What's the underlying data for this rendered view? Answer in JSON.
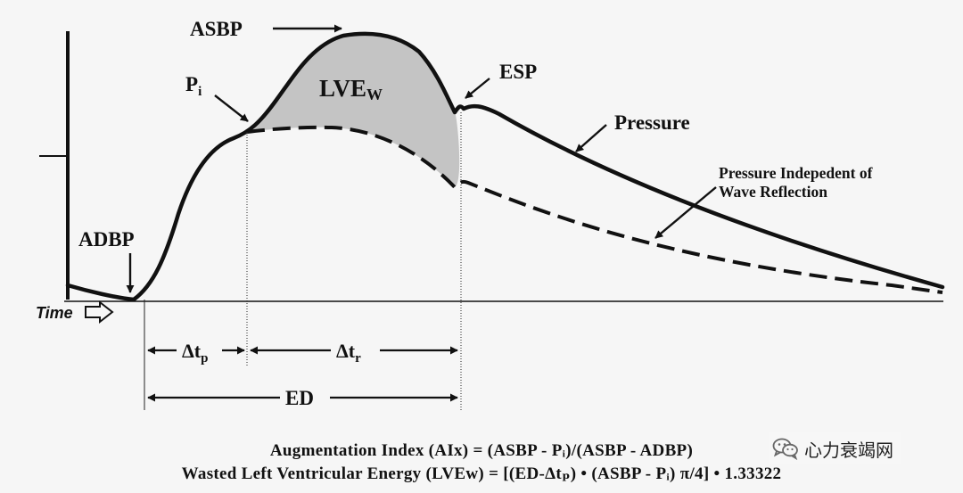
{
  "labels": {
    "asbp": "ASBP",
    "pi_main": "P",
    "pi_sub": "i",
    "lvew_main": "LVE",
    "lvew_sub": "W",
    "esp": "ESP",
    "pressure": "Pressure",
    "pressure_indep_line1": "Pressure Indepedent of",
    "pressure_indep_line2": "Wave Reflection",
    "adbp": "ADBP",
    "time": "Time",
    "dtp_main": "Δt",
    "dtp_sub": "p",
    "dtr_main": "Δt",
    "dtr_sub": "r",
    "ed": "ED"
  },
  "formulas": {
    "aix": "Augmentation Index (AIx) = (ASBP - Pᵢ)/(ASBP - ADBP)",
    "lvew": "Wasted Left Ventricular Energy (LVEᴡ) = [(ED-Δtₚ) • (ASBP - Pᵢ) π/4] • 1.33322"
  },
  "watermark": {
    "text": "心力衰竭网",
    "icon": "wechat-icon"
  },
  "colors": {
    "background": "#f6f6f6",
    "ink": "#111111",
    "shaded_area": "#c4c4c4"
  }
}
